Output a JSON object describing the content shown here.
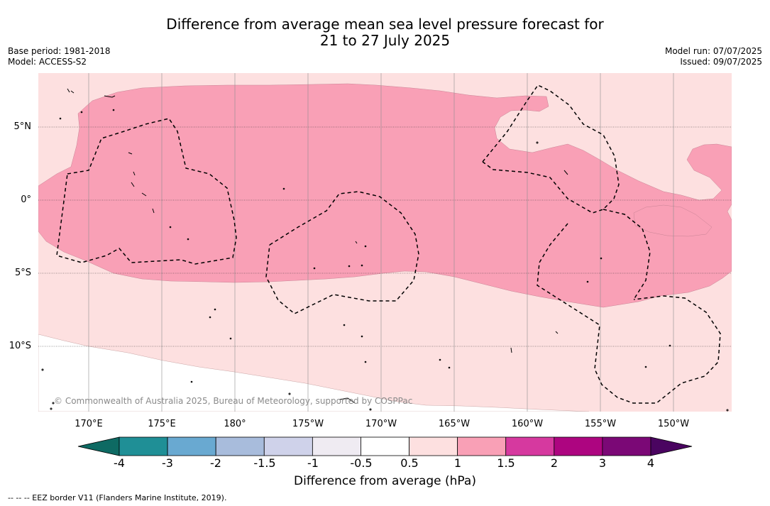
{
  "title_line1": "Difference from average mean sea level pressure forecast for",
  "title_line2": "21 to 27 July 2025",
  "meta_left": {
    "base_period": "Base period: 1981-2018",
    "model": "Model: ACCESS-S2"
  },
  "meta_right": {
    "model_run": "Model run: 07/07/2025",
    "issued": "Issued: 09/07/2025"
  },
  "map": {
    "longitude_labels": [
      "170°E",
      "175°E",
      "180°",
      "175°W",
      "170°W",
      "165°W",
      "160°W",
      "155°W",
      "150°W"
    ],
    "latitude_labels": [
      "5°N",
      "0°",
      "5°S",
      "10°S"
    ],
    "copyright": "© Commonwealth of Australia 2025, Bureau of Meteorology, supported by COSPPac",
    "field_classes_present": [
      "0.5 to 1",
      "1 to 1.5",
      "below 0.5"
    ]
  },
  "colorbar": {
    "ticks": [
      "-4",
      "-3",
      "-2",
      "-1.5",
      "-1",
      "-0.5",
      "0.5",
      "1",
      "1.5",
      "2",
      "3",
      "4"
    ],
    "colors": [
      "#1f8f96",
      "#69a9d1",
      "#a8bcdc",
      "#cfd2ea",
      "#efebf2",
      "#ffffff",
      "#fde0e0",
      "#f9a0b6",
      "#d6399f",
      "#ad0580",
      "#7b0876"
    ],
    "extend_low_color": "#0e6a63",
    "extend_high_color": "#4a0460",
    "label": "Difference from average (hPa)"
  },
  "footer": "--  --  -- EEZ border V11 (Flanders Marine Institute, 2019)."
}
